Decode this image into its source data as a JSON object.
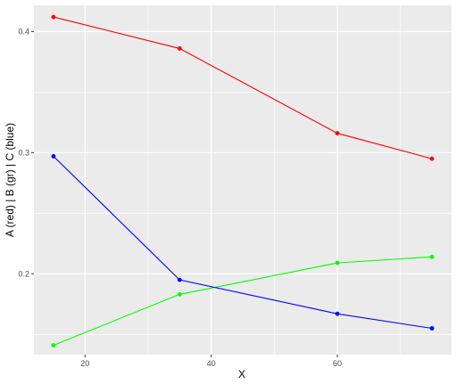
{
  "chart_data": {
    "type": "line",
    "title": "",
    "xlabel": "X",
    "ylabel": "A (red) | B (gr) | C (blue)",
    "x": [
      15,
      35,
      60,
      75
    ],
    "xlim": [
      11.9,
      78.1
    ],
    "ylim": [
      0.1333,
      0.4216
    ],
    "x_ticks": [
      20,
      40,
      60
    ],
    "y_ticks": [
      0.2,
      0.3,
      0.4
    ],
    "x_tick_labels": [
      "20",
      "40",
      "60"
    ],
    "y_tick_labels": [
      "0.2",
      "0.3",
      "0.4"
    ],
    "grid": true,
    "legend": "none",
    "series": [
      {
        "color": "#ff0000",
        "values": [
          0.412,
          0.386,
          0.316,
          0.295
        ]
      },
      {
        "color": "#00ff00",
        "values": [
          0.141,
          0.183,
          0.209,
          0.214
        ]
      },
      {
        "color": "#0000ff",
        "values": [
          0.297,
          0.195,
          0.167,
          0.155
        ]
      }
    ],
    "panel_background": "#ebebeb",
    "grid_color": "#ffffff"
  }
}
